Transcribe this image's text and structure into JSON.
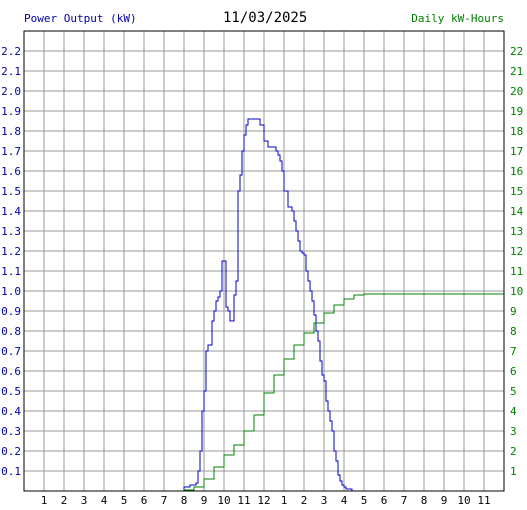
{
  "chart_data": {
    "type": "line",
    "title": "11/03/2025",
    "ylabel_left": "Power Output (kW)",
    "ylabel_right": "Daily kW-Hours",
    "grid": true,
    "x_tick_labels": [
      "1",
      "2",
      "3",
      "4",
      "5",
      "6",
      "7",
      "8",
      "9",
      "10",
      "11",
      "12",
      "1",
      "2",
      "3",
      "4",
      "5",
      "6",
      "7",
      "8",
      "9",
      "10",
      "11"
    ],
    "y_left_ticks": [
      "0.1",
      "0.2",
      "0.3",
      "0.4",
      "0.5",
      "0.6",
      "0.7",
      "0.8",
      "0.9",
      "1.0",
      "1.1",
      "1.2",
      "1.3",
      "1.4",
      "1.5",
      "1.6",
      "1.7",
      "1.8",
      "1.9",
      "2.0",
      "2.1",
      "2.2"
    ],
    "y_right_ticks": [
      "1",
      "2",
      "3",
      "4",
      "5",
      "6",
      "7",
      "8",
      "9",
      "10",
      "11",
      "12",
      "13",
      "14",
      "15",
      "16",
      "17",
      "18",
      "19",
      "20",
      "21",
      "22"
    ],
    "xlim": [
      0,
      24
    ],
    "ylim_left": [
      0,
      2.3
    ],
    "ylim_right": [
      0,
      23
    ],
    "colors": {
      "power": "#0000cc",
      "energy": "#008000",
      "grid": "#999999"
    },
    "series": [
      {
        "name": "Power Output (kW)",
        "axis": "left",
        "x": [
          7.6,
          8.0,
          8.3,
          8.6,
          8.7,
          8.8,
          8.9,
          9.0,
          9.1,
          9.2,
          9.3,
          9.4,
          9.5,
          9.6,
          9.7,
          9.8,
          9.9,
          10.0,
          10.1,
          10.2,
          10.3,
          10.4,
          10.5,
          10.6,
          10.7,
          10.8,
          10.9,
          11.0,
          11.1,
          11.2,
          11.3,
          11.4,
          11.5,
          11.6,
          11.8,
          12.0,
          12.2,
          12.4,
          12.5,
          12.6,
          12.7,
          12.8,
          12.9,
          13.0,
          13.2,
          13.4,
          13.5,
          13.6,
          13.7,
          13.8,
          13.9,
          14.0,
          14.1,
          14.2,
          14.3,
          14.4,
          14.5,
          14.6,
          14.7,
          14.8,
          14.9,
          15.0,
          15.1,
          15.2,
          15.3,
          15.4,
          15.5,
          15.6,
          15.7,
          15.8,
          15.9,
          16.0,
          16.1,
          16.2,
          16.3,
          16.4,
          16.5,
          16.6,
          16.7,
          16.8,
          16.9,
          17.0,
          17.1,
          17.2,
          17.3,
          17.4,
          17.6,
          17.8,
          18.0
        ],
        "values": [
          0.0,
          0.02,
          0.03,
          0.04,
          0.1,
          0.2,
          0.4,
          0.5,
          0.7,
          0.73,
          0.73,
          0.85,
          0.9,
          0.95,
          0.97,
          1.0,
          1.15,
          1.15,
          0.92,
          0.9,
          0.85,
          0.85,
          0.98,
          1.05,
          1.5,
          1.58,
          1.7,
          1.78,
          1.83,
          1.86,
          1.86,
          1.86,
          1.86,
          1.86,
          1.83,
          1.75,
          1.72,
          1.72,
          1.72,
          1.7,
          1.68,
          1.65,
          1.6,
          1.5,
          1.42,
          1.4,
          1.35,
          1.3,
          1.25,
          1.2,
          1.19,
          1.18,
          1.1,
          1.05,
          1.0,
          0.95,
          0.88,
          0.8,
          0.75,
          0.65,
          0.58,
          0.55,
          0.45,
          0.4,
          0.35,
          0.3,
          0.2,
          0.15,
          0.08,
          0.05,
          0.03,
          0.02,
          0.01,
          0.01,
          0.01,
          0.0,
          0.0,
          0.0,
          0.0,
          0.0,
          0.0,
          0.0,
          0.0,
          0.0,
          0.0,
          0.0,
          0.0,
          0.0,
          0.0
        ]
      },
      {
        "name": "Daily kW-Hours",
        "axis": "right",
        "x": [
          7.6,
          8.0,
          8.5,
          9.0,
          9.5,
          10.0,
          10.5,
          11.0,
          11.5,
          12.0,
          12.5,
          13.0,
          13.5,
          14.0,
          14.5,
          15.0,
          15.5,
          16.0,
          16.5,
          17.0,
          17.5,
          18.0,
          18.5,
          19.0,
          20.0,
          21.0,
          22.0,
          23.0,
          24.0
        ],
        "values": [
          0.0,
          0.05,
          0.2,
          0.6,
          1.2,
          1.8,
          2.3,
          3.0,
          3.8,
          4.9,
          5.8,
          6.6,
          7.3,
          7.9,
          8.4,
          8.9,
          9.3,
          9.6,
          9.8,
          9.85,
          9.85,
          9.85,
          9.85,
          9.85,
          9.85,
          9.85,
          9.85,
          9.85,
          9.85
        ]
      }
    ]
  }
}
